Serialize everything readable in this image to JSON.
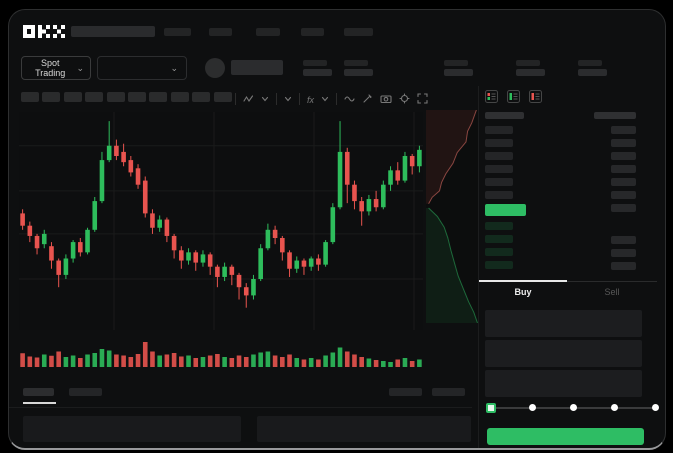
{
  "colors": {
    "up": "#2ebd5c",
    "down": "#e8544f",
    "accent_green": "#2ebd64",
    "grid": "#1a1b1b"
  },
  "header": {
    "logo": "OKX",
    "nav_placeholder_count": 5
  },
  "market_bar": {
    "market_selector_label": "Spot Trading",
    "caret": "⌄",
    "stat_group_count": 5
  },
  "chart_toolbar": {
    "placeholder_count": 10,
    "icons": [
      "indicator-zigzag",
      "caret-down",
      "caret-down",
      "fx-indicator",
      "caret-down",
      "line-wave",
      "draw-pencil",
      "camera",
      "settings-gear",
      "fullscreen"
    ],
    "fx_label": "fx"
  },
  "chart_data": {
    "type": "candlestick",
    "price_scale": [
      0,
      100
    ],
    "grid": true,
    "candles": [
      [
        52,
        46,
        54,
        44
      ],
      [
        46,
        41,
        48,
        38
      ],
      [
        41,
        35,
        42,
        32
      ],
      [
        37,
        42,
        44,
        35
      ],
      [
        36,
        29,
        38,
        25
      ],
      [
        29,
        22,
        30,
        16
      ],
      [
        22,
        30,
        32,
        20
      ],
      [
        30,
        38,
        39,
        28
      ],
      [
        38,
        33,
        40,
        31
      ],
      [
        33,
        44,
        45,
        32
      ],
      [
        44,
        58,
        60,
        43
      ],
      [
        58,
        78,
        82,
        57
      ],
      [
        78,
        85,
        97,
        77
      ],
      [
        85,
        80,
        88,
        78
      ],
      [
        82,
        77,
        86,
        75
      ],
      [
        78,
        72,
        80,
        70
      ],
      [
        74,
        66,
        76,
        64
      ],
      [
        68,
        52,
        70,
        50
      ],
      [
        52,
        45,
        54,
        42
      ],
      [
        45,
        49,
        51,
        43
      ],
      [
        49,
        41,
        50,
        38
      ],
      [
        41,
        34,
        42,
        30
      ],
      [
        34,
        29,
        36,
        25
      ],
      [
        29,
        33,
        35,
        27
      ],
      [
        33,
        28,
        34,
        24
      ],
      [
        28,
        32,
        34,
        26
      ],
      [
        32,
        26,
        33,
        22
      ],
      [
        26,
        21,
        27,
        16
      ],
      [
        21,
        26,
        28,
        19
      ],
      [
        26,
        22,
        27,
        17
      ],
      [
        22,
        16,
        23,
        10
      ],
      [
        16,
        12,
        18,
        6
      ],
      [
        12,
        20,
        22,
        10
      ],
      [
        20,
        35,
        37,
        19
      ],
      [
        35,
        44,
        47,
        34
      ],
      [
        44,
        40,
        46,
        37
      ],
      [
        40,
        33,
        41,
        29
      ],
      [
        33,
        25,
        34,
        21
      ],
      [
        25,
        29,
        31,
        23
      ],
      [
        29,
        26,
        30,
        22
      ],
      [
        26,
        30,
        31,
        24
      ],
      [
        30,
        27,
        32,
        24
      ],
      [
        27,
        38,
        39,
        26
      ],
      [
        38,
        55,
        57,
        37
      ],
      [
        55,
        82,
        97,
        54
      ],
      [
        82,
        66,
        84,
        57
      ],
      [
        66,
        58,
        68,
        54
      ],
      [
        58,
        53,
        60,
        46
      ],
      [
        53,
        59,
        61,
        51
      ],
      [
        59,
        55,
        63,
        53
      ],
      [
        55,
        66,
        68,
        54
      ],
      [
        66,
        73,
        75,
        63
      ],
      [
        73,
        68,
        77,
        66
      ],
      [
        68,
        80,
        82,
        67
      ],
      [
        80,
        75,
        81,
        71
      ],
      [
        75,
        83,
        85,
        72
      ]
    ],
    "volumes": [
      55,
      42,
      38,
      50,
      45,
      62,
      40,
      46,
      36,
      50,
      56,
      72,
      66,
      50,
      46,
      40,
      52,
      100,
      62,
      46,
      50,
      56,
      42,
      46,
      36,
      40,
      46,
      52,
      40,
      36,
      46,
      40,
      50,
      58,
      62,
      46,
      40,
      50,
      36,
      30,
      36,
      30,
      46,
      58,
      78,
      62,
      50,
      40,
      34,
      28,
      24,
      20,
      30,
      36,
      24,
      30
    ],
    "depth": {
      "asks": [
        [
          0,
          0.97
        ],
        [
          0.06,
          0.88
        ],
        [
          0.1,
          0.8
        ],
        [
          0.15,
          0.77
        ],
        [
          0.2,
          0.6
        ],
        [
          0.25,
          0.52
        ],
        [
          0.3,
          0.38
        ],
        [
          0.34,
          0.3
        ],
        [
          0.38,
          0.26
        ],
        [
          0.41,
          0.12
        ],
        [
          0.44,
          0.05
        ]
      ],
      "bids": [
        [
          0.46,
          0.05
        ],
        [
          0.5,
          0.22
        ],
        [
          0.55,
          0.35
        ],
        [
          0.6,
          0.42
        ],
        [
          0.66,
          0.48
        ],
        [
          0.72,
          0.55
        ],
        [
          0.78,
          0.62
        ],
        [
          0.84,
          0.72
        ],
        [
          0.9,
          0.82
        ],
        [
          0.95,
          0.92
        ],
        [
          1.0,
          0.99
        ]
      ]
    }
  },
  "orderbook": {
    "view_icons": [
      "book-combined",
      "book-bids",
      "book-asks"
    ],
    "ask_row_count": 6,
    "bid_row_count": 4,
    "right_top_row_count": 7,
    "right_bottom_row_count": 3
  },
  "trade_panel": {
    "tabs": [
      {
        "label": "Buy",
        "active": true
      },
      {
        "label": "Sell",
        "active": false
      }
    ],
    "slider_stop_count": 5,
    "slider_active_index": 0,
    "input_placeholder_count": 3,
    "buy_button_label": ""
  },
  "bottom_panel": {
    "tab_placeholder_count": 2,
    "right_placeholder_count": 2,
    "content_block_count": 2
  }
}
